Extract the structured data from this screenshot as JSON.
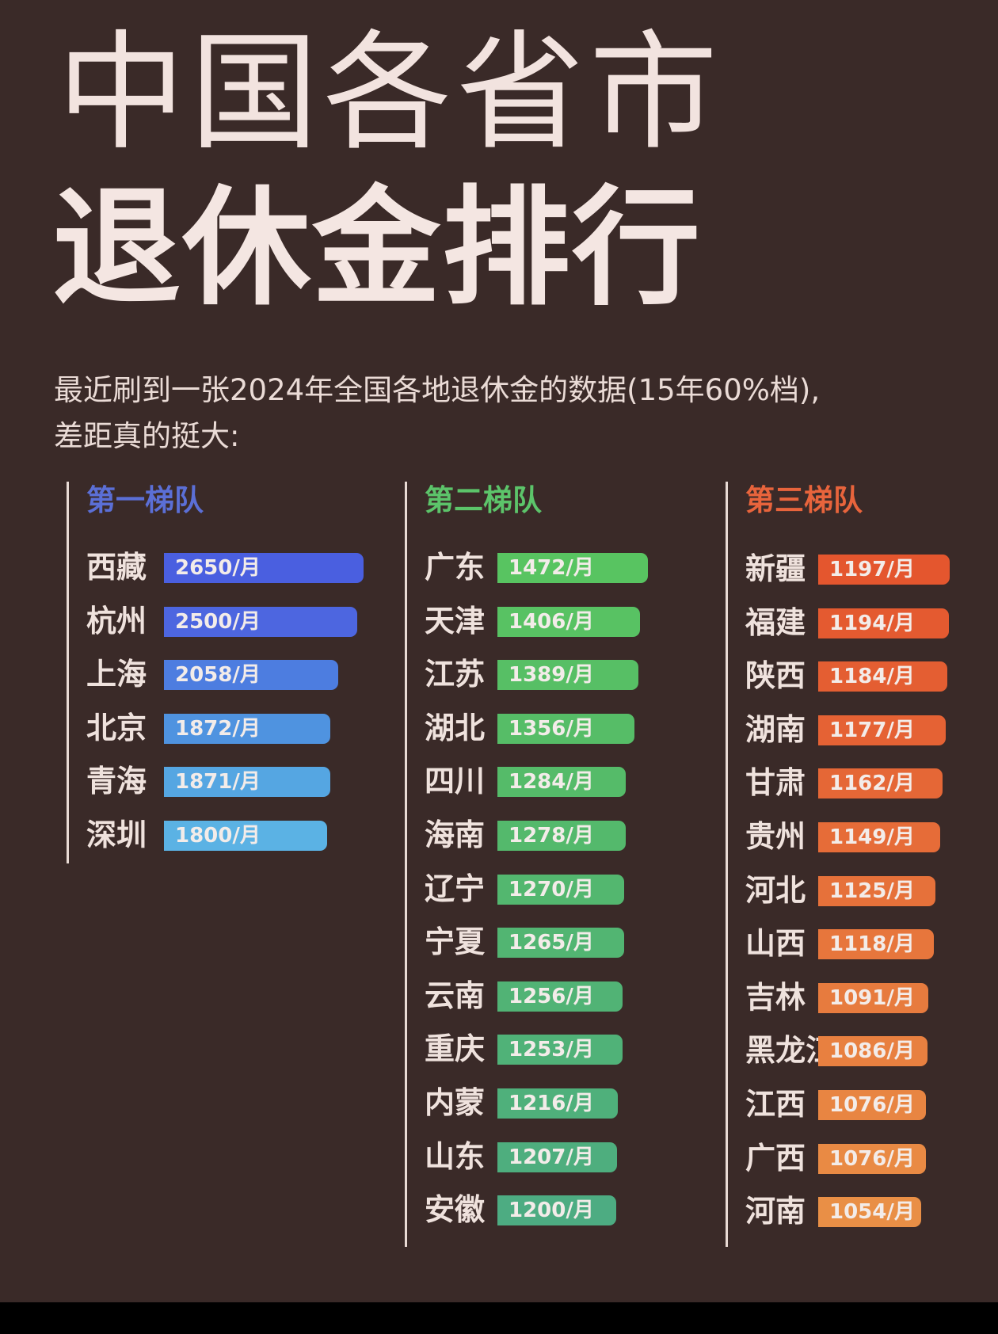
{
  "title": {
    "line1": "中国各省市",
    "line2": "退休金排行"
  },
  "subtitle": {
    "line1": "最近刷到一张2024年全国各地退休金的数据(15年60%档),",
    "line2": "差距真的挺大:"
  },
  "chart_data": {
    "type": "bar",
    "unit_suffix": "/月",
    "groups": [
      {
        "name": "第一梯队",
        "color": "#5b6fd6",
        "categories": [
          "西藏",
          "杭州",
          "上海",
          "北京",
          "青海",
          "深圳"
        ],
        "values": [
          2650,
          2500,
          2058,
          1872,
          1871,
          1800
        ],
        "bar_colors": [
          "#4a5fe0",
          "#4d66e0",
          "#4d7de0",
          "#4f93e0",
          "#55a6e2",
          "#5bb2e4"
        ]
      },
      {
        "name": "第二梯队",
        "color": "#5cc46a",
        "categories": [
          "广东",
          "天津",
          "江苏",
          "湖北",
          "四川",
          "海南",
          "辽宁",
          "宁夏",
          "云南",
          "重庆",
          "内蒙",
          "山东",
          "安徽"
        ],
        "values": [
          1472,
          1406,
          1389,
          1356,
          1284,
          1278,
          1270,
          1265,
          1256,
          1253,
          1216,
          1207,
          1200
        ],
        "bar_colors": [
          "#58c461",
          "#58c263",
          "#57bf65",
          "#56bd67",
          "#55bb69",
          "#54b96c",
          "#53b76f",
          "#52b572",
          "#51b375",
          "#50b278",
          "#4fb07b",
          "#4eae7e",
          "#4dac82"
        ]
      },
      {
        "name": "第三梯队",
        "color": "#e8643c",
        "categories": [
          "新疆",
          "福建",
          "陕西",
          "湖南",
          "甘肃",
          "贵州",
          "河北",
          "山西",
          "吉林",
          "黑龙江",
          "江西",
          "广西",
          "河南"
        ],
        "values": [
          1197,
          1194,
          1184,
          1177,
          1162,
          1149,
          1125,
          1118,
          1091,
          1086,
          1076,
          1076,
          1054
        ],
        "bar_colors": [
          "#e4562e",
          "#e45a30",
          "#e45e32",
          "#e56234",
          "#e56736",
          "#e66c38",
          "#e6713a",
          "#e7763c",
          "#e77b3e",
          "#e88040",
          "#e88542",
          "#e98a44",
          "#e98f46"
        ]
      }
    ],
    "xlim": [
      0,
      2650
    ]
  }
}
